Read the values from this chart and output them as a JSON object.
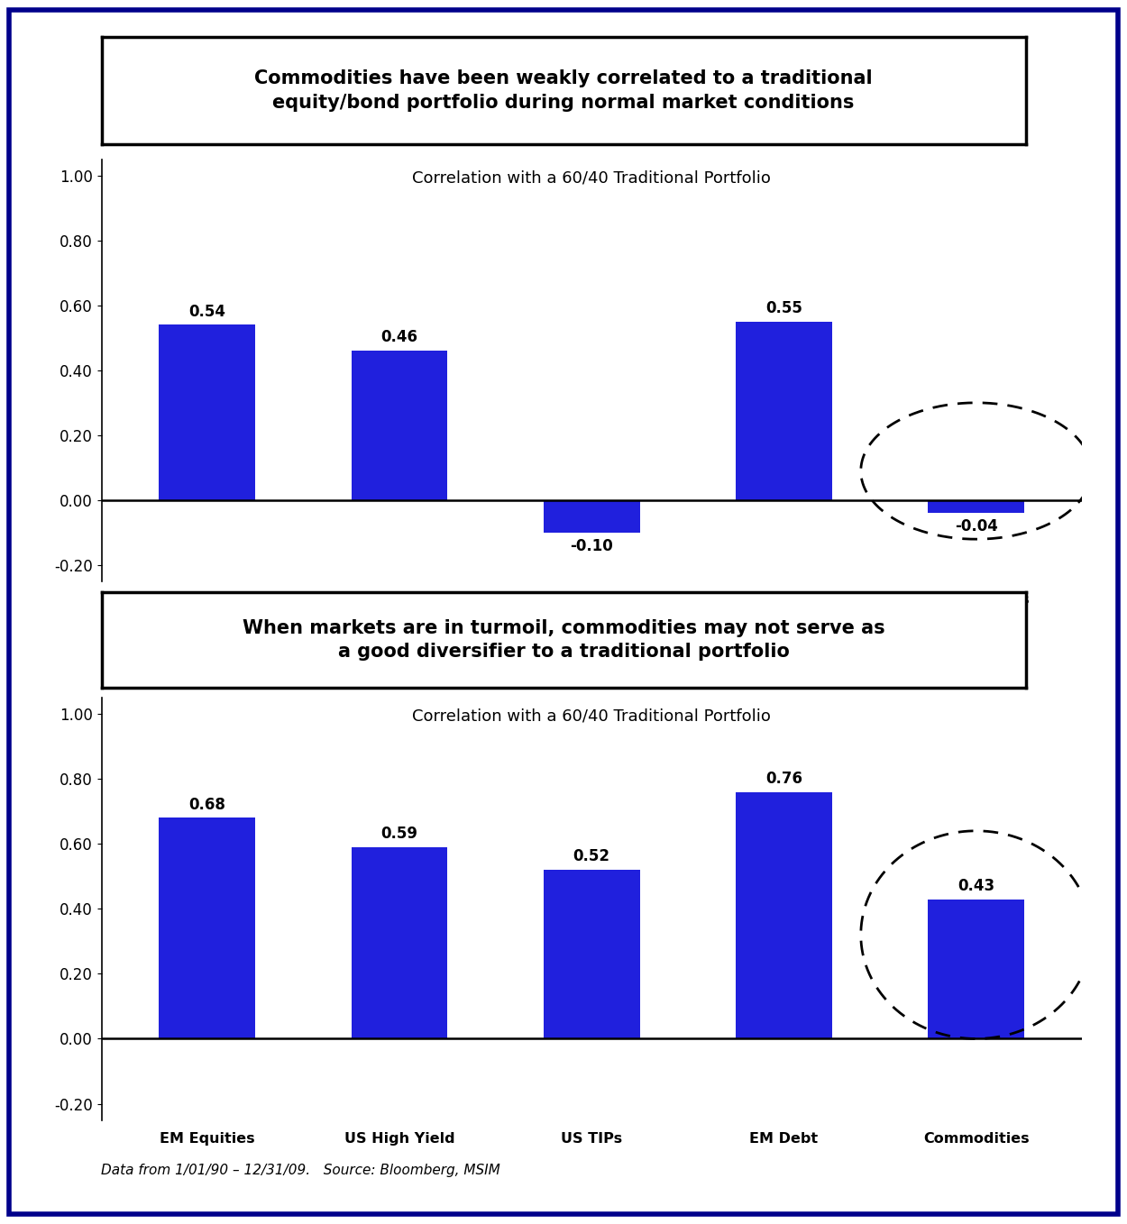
{
  "title1": "Commodities have been weakly correlated to a traditional\nequity/bond portfolio during normal market conditions",
  "title2": "When markets are in turmoil, commodities may not serve as\na good diversifier to a traditional portfolio",
  "subtitle": "Correlation with a 60/40 Traditional Portfolio",
  "categories": [
    "EM Equities",
    "US High Yield",
    "US TIPs",
    "EM Debt",
    "Commodities"
  ],
  "values1": [
    0.54,
    0.46,
    -0.1,
    0.55,
    -0.04
  ],
  "values2": [
    0.68,
    0.59,
    0.52,
    0.76,
    0.43
  ],
  "bar_color": "#2020dd",
  "ylim": [
    -0.25,
    1.05
  ],
  "yticks": [
    -0.2,
    0.0,
    0.2,
    0.4,
    0.6,
    0.8,
    1.0
  ],
  "footnote": "Data from 1/01/90 – 12/31/09.   Source: Bloomberg, MSIM",
  "bg_color": "#ffffff",
  "border_color": "#00008B"
}
